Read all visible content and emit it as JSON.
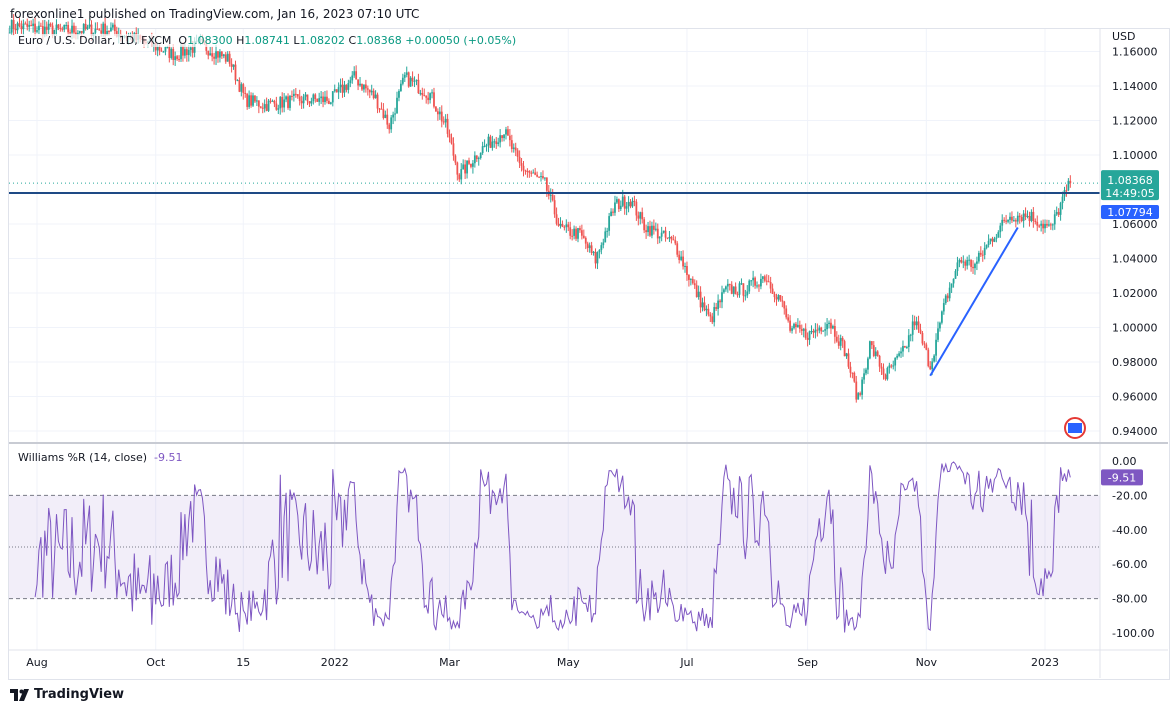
{
  "published": "forexonline1 published on TradingView.com, Jan 16, 2023 07:10 UTC",
  "legend": {
    "symbol": "Euro / U.S. Dollar, 1D, FXCM",
    "o_label": "O",
    "o": "1.08300",
    "h_label": "H",
    "h": "1.08741",
    "l_label": "L",
    "l": "1.08202",
    "c_label": "C",
    "c": "1.08368",
    "change": "+0.00050 (+0.05%)"
  },
  "currency": "USD",
  "price_badge": {
    "price": "1.08368",
    "countdown": "14:49:05",
    "color": "#26a69a"
  },
  "line_badge": {
    "price": "1.07794",
    "color": "#2962ff"
  },
  "indicator": {
    "name": "Williams %R (14, close)",
    "value": "-9.51",
    "badge": "-9.51",
    "color": "#7e57c2"
  },
  "footer": {
    "brand": "TradingView"
  },
  "chart_data": [
    {
      "type": "candlestick",
      "title": "Euro / U.S. Dollar, 1D, FXCM",
      "yticks": [
        "1.16000",
        "1.14000",
        "1.12000",
        "1.10000",
        "1.06000",
        "1.04000",
        "1.02000",
        "1.00000",
        "0.98000",
        "0.96000",
        "0.94000"
      ],
      "ylim": [
        0.93,
        1.175
      ],
      "xticks": [
        {
          "label": "Aug",
          "date": "2021-08-01"
        },
        {
          "label": "Oct",
          "date": "2021-10-01"
        },
        {
          "label": "15",
          "date": "2021-11-15"
        },
        {
          "label": "2022",
          "date": "2022-01-01"
        },
        {
          "label": "Mar",
          "date": "2022-03-01"
        },
        {
          "label": "May",
          "date": "2022-05-01"
        },
        {
          "label": "Jul",
          "date": "2022-07-01"
        },
        {
          "label": "Sep",
          "date": "2022-09-01"
        },
        {
          "label": "Nov",
          "date": "2022-11-01"
        },
        {
          "label": "2023",
          "date": "2023-01-01"
        }
      ],
      "colors": {
        "up": "#26a69a",
        "down": "#ef5350"
      },
      "close_path": [
        [
          "2021-07-18",
          1.175
        ],
        [
          "2021-08-13",
          1.172
        ],
        [
          "2021-09-07",
          1.173
        ],
        [
          "2021-09-28",
          1.164
        ],
        [
          "2021-10-11",
          1.158
        ],
        [
          "2021-10-24",
          1.164
        ],
        [
          "2021-11-08",
          1.155
        ],
        [
          "2021-11-16",
          1.132
        ],
        [
          "2021-11-26",
          1.129
        ],
        [
          "2021-12-14",
          1.132
        ],
        [
          "2021-12-30",
          1.132
        ],
        [
          "2022-01-11",
          1.145
        ],
        [
          "2022-01-22",
          1.133
        ],
        [
          "2022-01-29",
          1.117
        ],
        [
          "2022-02-06",
          1.145
        ],
        [
          "2022-02-19",
          1.135
        ],
        [
          "2022-02-27",
          1.117
        ],
        [
          "2022-03-06",
          1.088
        ],
        [
          "2022-03-17",
          1.103
        ],
        [
          "2022-03-29",
          1.114
        ],
        [
          "2022-04-06",
          1.094
        ],
        [
          "2022-04-19",
          1.083
        ],
        [
          "2022-04-27",
          1.057
        ],
        [
          "2022-05-07",
          1.054
        ],
        [
          "2022-05-15",
          1.039
        ],
        [
          "2022-05-25",
          1.071
        ],
        [
          "2022-06-02",
          1.074
        ],
        [
          "2022-06-09",
          1.059
        ],
        [
          "2022-06-17",
          1.054
        ],
        [
          "2022-06-25",
          1.048
        ],
        [
          "2022-07-05",
          1.022
        ],
        [
          "2022-07-13",
          1.004
        ],
        [
          "2022-07-21",
          1.022
        ],
        [
          "2022-07-31",
          1.022
        ],
        [
          "2022-08-10",
          1.03
        ],
        [
          "2022-08-18",
          1.016
        ],
        [
          "2022-08-23",
          0.999
        ],
        [
          "2022-09-02",
          0.996
        ],
        [
          "2022-09-12",
          1.004
        ],
        [
          "2022-09-20",
          0.987
        ],
        [
          "2022-09-27",
          0.958
        ],
        [
          "2022-10-03",
          0.99
        ],
        [
          "2022-10-11",
          0.972
        ],
        [
          "2022-10-21",
          0.987
        ],
        [
          "2022-10-26",
          1.004
        ],
        [
          "2022-11-03",
          0.978
        ],
        [
          "2022-11-11",
          1.016
        ],
        [
          "2022-11-18",
          1.039
        ],
        [
          "2022-11-26",
          1.036
        ],
        [
          "2022-12-04",
          1.051
        ],
        [
          "2022-12-14",
          1.065
        ],
        [
          "2022-12-24",
          1.065
        ],
        [
          "2023-01-04",
          1.057
        ],
        [
          "2023-01-10",
          1.074
        ],
        [
          "2023-01-14",
          1.0837
        ]
      ],
      "horizontal_line": 1.07794,
      "trend_line": [
        [
          "2022-11-03",
          0.972
        ],
        [
          "2022-12-18",
          1.058
        ]
      ]
    },
    {
      "type": "line",
      "title": "Williams %R (14, close)",
      "yticks": [
        "0.00",
        "-20.00",
        "-40.00",
        "-60.00",
        "-80.00",
        "-100.00"
      ],
      "ylim": [
        -100,
        0
      ],
      "bands": [
        -20,
        -50,
        -80
      ],
      "last": -9.51
    }
  ]
}
